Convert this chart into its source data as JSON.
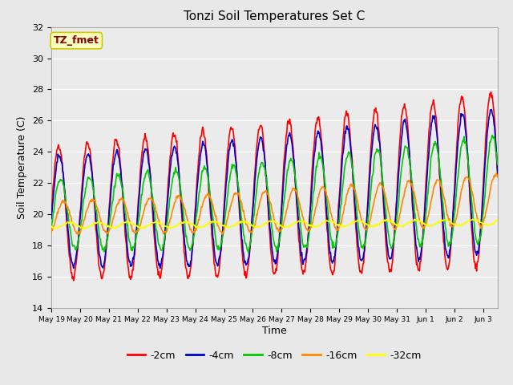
{
  "title": "Tonzi Soil Temperatures Set C",
  "xlabel": "Time",
  "ylabel": "Soil Temperature (C)",
  "ylim": [
    14,
    32
  ],
  "yticks": [
    14,
    16,
    18,
    20,
    22,
    24,
    26,
    28,
    30,
    32
  ],
  "annotation_text": "TZ_fmet",
  "annotation_color": "#8B0000",
  "annotation_bg": "#FFFFC0",
  "annotation_edge": "#CCCC00",
  "fig_bg_color": "#E8E8E8",
  "plot_bg_color": "#EBEBEB",
  "line_colors": {
    "-2cm": "#FF0000",
    "-4cm": "#0000CC",
    "-8cm": "#00CC00",
    "-16cm": "#FF8800",
    "-32cm": "#FFFF00"
  },
  "xtick_labels": [
    "May 19",
    "May 20",
    "May 21",
    "May 22",
    "May 23",
    "May 24",
    "May 25",
    "May 26",
    "May 27",
    "May 28",
    "May 29",
    "May 30",
    "May 31",
    "Jun 1",
    "Jun 2",
    "Jun 3"
  ],
  "legend_labels": [
    "-2cm",
    "-4cm",
    "-8cm",
    "-16cm",
    "-32cm"
  ],
  "n_days": 15.5
}
